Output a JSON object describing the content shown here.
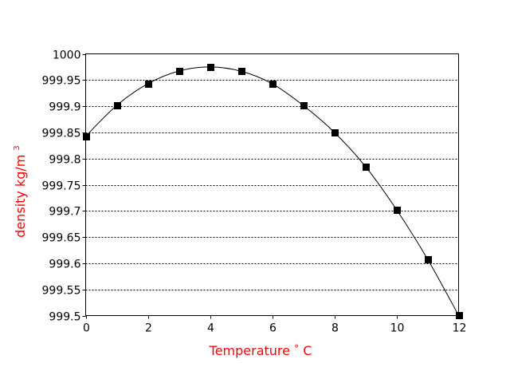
{
  "chart_data": {
    "type": "line",
    "title": "",
    "xlabel": "Temperature °C",
    "ylabel": "density kg/m³",
    "x": [
      0,
      1,
      2,
      3,
      4,
      5,
      6,
      7,
      8,
      9,
      10,
      11,
      12
    ],
    "series": [
      {
        "name": "density",
        "values": [
          999.8425,
          999.9015,
          999.9429,
          999.9672,
          999.975,
          999.9668,
          999.943,
          999.9015,
          999.8502,
          999.7849,
          999.7026,
          999.6081,
          999.5004
        ],
        "marker": "square",
        "color": "#000000"
      }
    ],
    "xlim": [
      0,
      12
    ],
    "ylim": [
      999.5,
      1000
    ],
    "x_ticks": [
      0,
      2,
      4,
      6,
      8,
      10,
      12
    ],
    "y_ticks": [
      999.5,
      999.55,
      999.6,
      999.65,
      999.7,
      999.75,
      999.8,
      999.85,
      999.9,
      999.95,
      1000
    ],
    "x_tick_labels": [
      "0",
      "2",
      "4",
      "6",
      "8",
      "10",
      "12"
    ],
    "y_tick_labels": [
      "999.5",
      "999.55",
      "999.6",
      "999.65",
      "999.7",
      "999.75",
      "999.8",
      "999.85",
      "999.9",
      "999.95",
      "1000"
    ],
    "grid": "horizontal dotted",
    "legend": "none"
  },
  "labels": {
    "xlabel_main": "Temperature",
    "xlabel_degree": "°",
    "xlabel_unit": "C",
    "ylabel_main": "density kg/m",
    "ylabel_sup": "3"
  },
  "colors": {
    "axis_title": "#ff0000",
    "line": "#000000",
    "grid": "#000000"
  }
}
